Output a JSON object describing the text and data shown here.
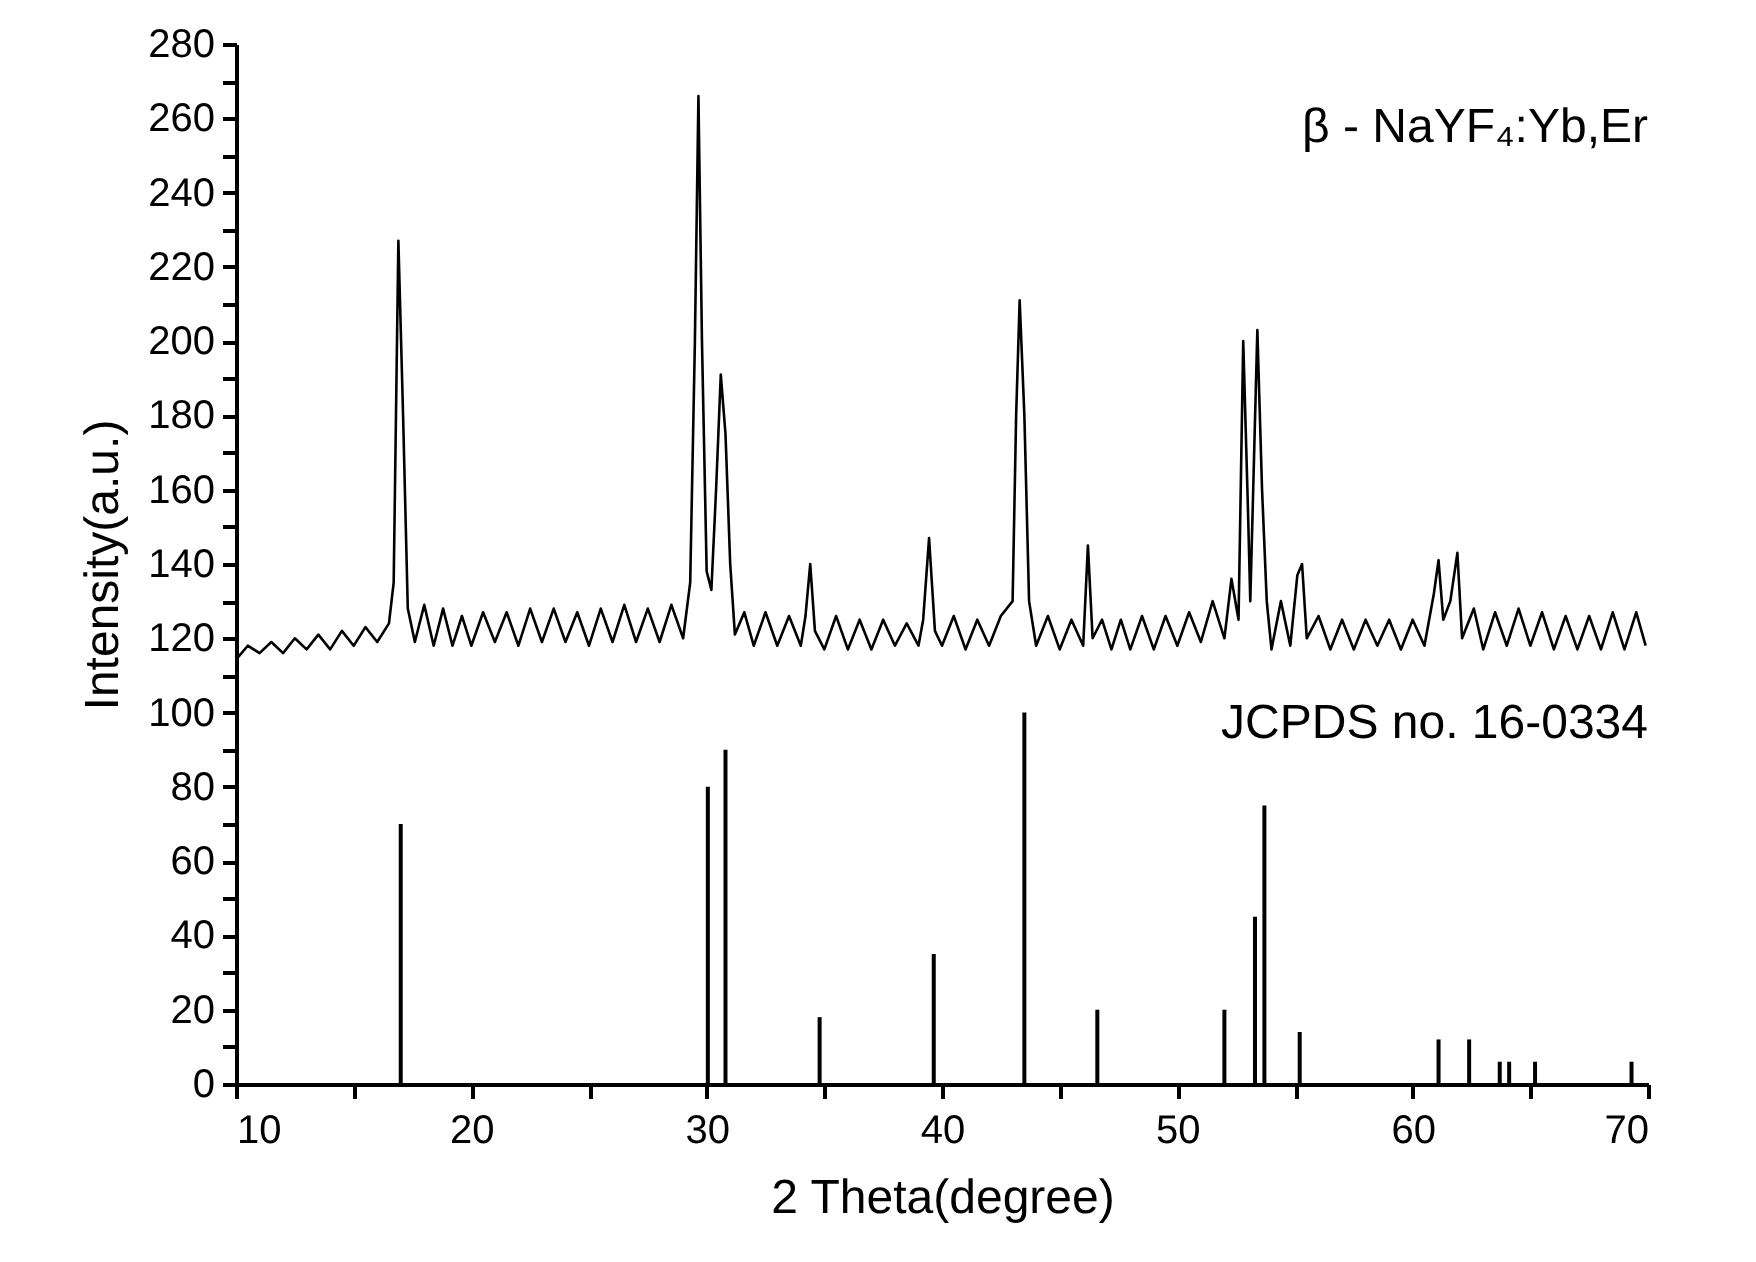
{
  "chart_data": {
    "type": "line",
    "xlabel": "2  Theta(degree)",
    "ylabel": "Intensity(a.u.)",
    "xlim": [
      10,
      70
    ],
    "ylim": [
      0,
      280
    ],
    "xticks": [
      10,
      {
        "value": 15,
        "label": null
      },
      20,
      {
        "value": 25,
        "label": null
      },
      30,
      {
        "value": 35,
        "label": null
      },
      40,
      {
        "value": 45,
        "label": null
      },
      50,
      {
        "value": 55,
        "label": null
      },
      60,
      {
        "value": 65,
        "label": null
      },
      70
    ],
    "yticks": [
      0,
      {
        "value": 10,
        "label": null
      },
      20,
      {
        "value": 30,
        "label": null
      },
      40,
      {
        "value": 50,
        "label": null
      },
      60,
      {
        "value": 70,
        "label": null
      },
      80,
      {
        "value": 90,
        "label": null
      },
      100,
      {
        "value": 110,
        "label": null
      },
      120,
      {
        "value": 130,
        "label": null
      },
      140,
      {
        "value": 150,
        "label": null
      },
      160,
      {
        "value": 170,
        "label": null
      },
      180,
      {
        "value": 190,
        "label": null
      },
      200,
      {
        "value": 210,
        "label": null
      },
      220,
      {
        "value": 230,
        "label": null
      },
      240,
      {
        "value": 250,
        "label": null
      },
      260,
      {
        "value": 270,
        "label": null
      },
      280
    ],
    "grid": false,
    "annotations": [
      "β - NaYF₄:Yb,Er",
      "JCPDS no. 16-0334"
    ],
    "series": [
      {
        "color": "#000000",
        "x": [
          10.1,
          10.5,
          11,
          11.5,
          12,
          12.5,
          13,
          13.5,
          14,
          14.5,
          15,
          15.5,
          16,
          16.5,
          16.7,
          16.9,
          17.1,
          17.3,
          17.6,
          18,
          18.4,
          18.8,
          19.2,
          19.6,
          20,
          20.5,
          21,
          21.5,
          22,
          22.5,
          23,
          23.5,
          24,
          24.5,
          25,
          25.5,
          26,
          26.5,
          27,
          27.5,
          28,
          28.5,
          29,
          29.3,
          29.5,
          29.65,
          29.8,
          30,
          30.2,
          30.4,
          30.6,
          30.8,
          31,
          31.2,
          31.6,
          32,
          32.5,
          33,
          33.5,
          34,
          34.2,
          34.4,
          34.6,
          35,
          35.5,
          36,
          36.5,
          37,
          37.5,
          38,
          38.5,
          39,
          39.2,
          39.45,
          39.7,
          40,
          40.5,
          41,
          41.5,
          42,
          42.5,
          43,
          43.15,
          43.3,
          43.5,
          43.7,
          44,
          44.5,
          45,
          45.5,
          46,
          46.2,
          46.4,
          46.8,
          47.2,
          47.6,
          48,
          48.5,
          49,
          49.5,
          50,
          50.5,
          51,
          51.5,
          52,
          52.3,
          52.6,
          52.8,
          53,
          53.1,
          53.4,
          53.6,
          53.8,
          54,
          54.4,
          54.8,
          55.1,
          55.3,
          55.5,
          56,
          56.5,
          57,
          57.5,
          58,
          58.5,
          59,
          59.5,
          60,
          60.5,
          60.9,
          61.1,
          61.3,
          61.6,
          61.9,
          62.1,
          62.6,
          63,
          63.5,
          64,
          64.5,
          65,
          65.5,
          66,
          66.5,
          67,
          67.5,
          68,
          68.5,
          69,
          69.5,
          69.9
        ],
        "values": [
          115,
          118,
          116,
          119,
          116,
          120,
          117,
          121,
          117,
          122,
          118,
          123,
          119,
          124,
          135,
          227,
          180,
          128,
          119,
          129,
          118,
          128,
          118,
          126,
          118,
          127,
          119,
          127,
          118,
          128,
          119,
          128,
          119,
          127,
          118,
          128,
          119,
          129,
          119,
          128,
          119,
          129,
          120,
          135,
          200,
          266,
          200,
          138,
          133,
          160,
          191,
          175,
          140,
          121,
          127,
          118,
          127,
          118,
          126,
          118,
          126,
          140,
          122,
          117,
          126,
          117,
          125,
          117,
          125,
          118,
          124,
          118,
          125,
          147,
          122,
          118,
          126,
          117,
          125,
          118,
          126,
          130,
          180,
          211,
          180,
          130,
          118,
          126,
          117,
          125,
          118,
          145,
          120,
          125,
          117,
          125,
          117,
          126,
          117,
          126,
          118,
          127,
          119,
          130,
          120,
          136,
          125,
          200,
          155,
          130,
          203,
          160,
          130,
          117,
          130,
          118,
          137,
          140,
          120,
          126,
          117,
          125,
          117,
          125,
          118,
          125,
          117,
          125,
          118,
          132,
          141,
          125,
          130,
          143,
          120,
          128,
          117,
          127,
          118,
          128,
          118,
          127,
          117,
          126,
          117,
          126,
          117,
          127,
          117,
          127,
          118
        ]
      },
      {
        "type": "bar",
        "color": "#000000",
        "x": [
          17.0,
          30.05,
          30.8,
          34.8,
          39.65,
          43.5,
          46.6,
          52.0,
          53.3,
          53.7,
          55.2,
          61.1,
          62.4,
          63.7,
          64.1,
          65.2,
          69.3
        ],
        "values": [
          70,
          80,
          90,
          18,
          35,
          100,
          20,
          20,
          45,
          75,
          14,
          12,
          12,
          6,
          6,
          6,
          6
        ]
      }
    ]
  }
}
